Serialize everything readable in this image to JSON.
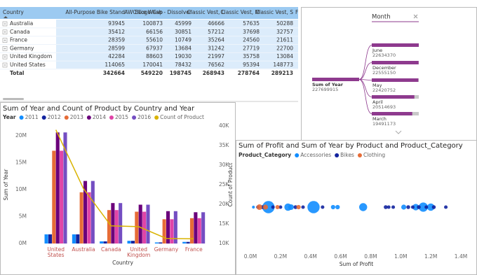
{
  "table": {
    "columns": [
      "Country",
      "All-Purpose Bike Stand",
      "AWC Logo Cap",
      "Bike Wash - Dissolver",
      "Classic Vest, L",
      "Classic Vest, M",
      "Classic Vest, S",
      "Fe"
    ],
    "rows": [
      [
        "Australia",
        93945,
        100873,
        45999,
        46666,
        57635,
        50288
      ],
      [
        "Canada",
        35412,
        66156,
        30851,
        57212,
        37698,
        32757
      ],
      [
        "France",
        28359,
        55610,
        10749,
        35264,
        24560,
        21611
      ],
      [
        "Germany",
        28599,
        67937,
        13684,
        31242,
        27719,
        22700
      ],
      [
        "United Kingdom",
        42284,
        88603,
        19030,
        21997,
        35758,
        13084
      ],
      [
        "United States",
        114065,
        170041,
        78432,
        76562,
        95394,
        148773
      ]
    ],
    "total": [
      "Total",
      342664,
      549220,
      198745,
      268943,
      278764,
      289213
    ]
  },
  "decomposition_tree": {
    "field": "Month",
    "color": "#8e3a8e",
    "root": {
      "label": "Sum of Year",
      "value": 227699915
    },
    "nodes": [
      {
        "label": "June",
        "value": 22634370
      },
      {
        "label": "December",
        "value": 22555150
      },
      {
        "label": "May",
        "value": 22420752
      },
      {
        "label": "April",
        "value": 20514693
      },
      {
        "label": "March",
        "value": 19491173
      }
    ]
  },
  "chart_data": [
    {
      "type": "bar_line",
      "title": "Sum of Year and Count of Product by Country and Year",
      "legend_title": "Year",
      "categories": [
        "United States",
        "Australia",
        "Canada",
        "United Kingdom",
        "Germany",
        "France"
      ],
      "series": [
        {
          "name": "2011",
          "color": "#118dff",
          "values": [
            1700000,
            1700000,
            400000,
            500000,
            200000,
            300000
          ]
        },
        {
          "name": "2012",
          "color": "#12239e",
          "values": [
            1700000,
            1700000,
            400000,
            500000,
            200000,
            300000
          ]
        },
        {
          "name": "2013",
          "color": "#e66c37",
          "values": [
            17200000,
            9500000,
            6200000,
            5900000,
            4500000,
            4700000
          ]
        },
        {
          "name": "2014",
          "color": "#6b007b",
          "values": [
            20600000,
            11600000,
            7500000,
            7200000,
            6000000,
            5800000
          ]
        },
        {
          "name": "2015",
          "color": "#e044a7",
          "values": [
            17200000,
            9500000,
            6200000,
            5900000,
            4500000,
            4700000
          ]
        },
        {
          "name": "2016",
          "color": "#744ec2",
          "values": [
            20600000,
            11600000,
            7500000,
            7200000,
            6000000,
            5800000
          ]
        },
        {
          "name": "Count of Product",
          "type": "line",
          "axis": "y2",
          "color": "#d9b300",
          "values": [
            39000,
            24000,
            14500,
            14300,
            11300,
            11200
          ]
        }
      ],
      "ylim": [
        0,
        21800000
      ],
      "yticks": [
        {
          "value": 0,
          "label": "0M"
        },
        {
          "value": 5000000,
          "label": "5M"
        },
        {
          "value": 10000000,
          "label": "10M"
        },
        {
          "value": 15000000,
          "label": "15M"
        },
        {
          "value": 20000000,
          "label": "20M"
        }
      ],
      "y2lim": [
        10000,
        40000
      ],
      "y2ticks": [
        {
          "value": 10000,
          "label": "10K"
        },
        {
          "value": 15000,
          "label": "15K"
        },
        {
          "value": 20000,
          "label": "20K"
        },
        {
          "value": 25000,
          "label": "25K"
        },
        {
          "value": 30000,
          "label": "30K"
        },
        {
          "value": 35000,
          "label": "35K"
        },
        {
          "value": 40000,
          "label": "40K"
        }
      ],
      "y_label": "Sum of Year",
      "y2_label": "Count of Product",
      "x_label": "Country"
    },
    {
      "type": "scatter",
      "title": "Sum of Profit and Sum of Year by Product and Product_Category",
      "legend_title": "Product_Category",
      "series": [
        {
          "name": "Accessories",
          "color": "#118dff",
          "x": [
            20000,
            120000,
            250000,
            270000,
            420000,
            550000,
            580000,
            750000,
            1020000,
            1100000,
            1150000,
            1200000
          ],
          "y": [
            0,
            0,
            0,
            0,
            0,
            0,
            0,
            0,
            0,
            0,
            0,
            0
          ],
          "sizes": [
            400000,
            7000000,
            2500000,
            1500000,
            7000000,
            900000,
            900000,
            3000000,
            1200000,
            2000000,
            4000000,
            2500000
          ]
        },
        {
          "name": "Bikes",
          "color": "#12239e",
          "x": [
            50000,
            80000,
            150000,
            200000,
            300000,
            350000,
            480000,
            900000,
            920000,
            950000,
            1050000,
            1080000,
            1120000,
            1170000,
            1220000,
            1300000
          ],
          "y": [
            0,
            0,
            0,
            0,
            0,
            0,
            0,
            0,
            0,
            0,
            0,
            0,
            0,
            0,
            0,
            0
          ],
          "sizes": [
            600000,
            700000,
            600000,
            600000,
            700000,
            600000,
            600000,
            700000,
            600000,
            600000,
            700000,
            600000,
            700000,
            600000,
            700000,
            600000
          ]
        },
        {
          "name": "Clothing",
          "color": "#e66c37",
          "x": [
            60000,
            100000,
            180000,
            320000
          ],
          "y": [
            0,
            0,
            0,
            0
          ],
          "sizes": [
            1500000,
            1200000,
            800000,
            900000
          ]
        }
      ],
      "xlim": [
        0,
        1400000
      ],
      "xticks": [
        {
          "value": 0,
          "label": "0.0M"
        },
        {
          "value": 200000,
          "label": "0.2M"
        },
        {
          "value": 400000,
          "label": "0.4M"
        },
        {
          "value": 600000,
          "label": "0.6M"
        },
        {
          "value": 800000,
          "label": "0.8M"
        },
        {
          "value": 1000000,
          "label": "1.0M"
        },
        {
          "value": 1200000,
          "label": "1.2M"
        },
        {
          "value": 1400000,
          "label": "1.4M"
        }
      ],
      "ylim": [
        -1,
        1
      ],
      "x_label": "Sum of Profit"
    }
  ]
}
